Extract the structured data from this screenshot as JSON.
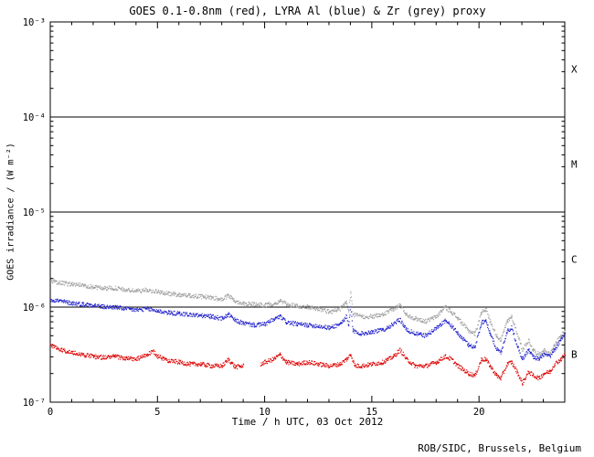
{
  "footer": {
    "credit": "ROB/SIDC, Brussels, Belgium"
  },
  "chart_data": {
    "type": "line",
    "title": "GOES 0.1-0.8nm (red), LYRA Al (blue) & Zr (grey) proxy",
    "xlabel": "Time / h UTC, 03 Oct 2012",
    "ylabel": "GOES irradiance / (W m⁻²)",
    "grid": false,
    "legend_position": "in-title",
    "x_axis": {
      "min": 0,
      "max": 24,
      "major_ticks": [
        0,
        5,
        10,
        15,
        20
      ],
      "tick_labels": [
        "0",
        "5",
        "10",
        "15",
        "20"
      ],
      "minor_tick_step": 1
    },
    "y_axis": {
      "scale": "log",
      "min": 1e-07,
      "max": 0.001,
      "tick_exponents": [
        -3,
        -4,
        -5,
        -6,
        -7
      ],
      "tick_labels": [
        "10⁻³",
        "10⁻⁴",
        "10⁻⁵",
        "10⁻⁶",
        "10⁻⁷"
      ]
    },
    "reference_lines": {
      "values": [
        0.0001,
        1e-05,
        1e-06
      ]
    },
    "flare_classes": [
      {
        "label": "X"
      },
      {
        "label": "M"
      },
      {
        "label": "C"
      },
      {
        "label": "B"
      }
    ],
    "series": [
      {
        "name": "LYRA Zr proxy",
        "color": "#a0a0a0",
        "points": [
          [
            0,
            1.86e-06
          ],
          [
            0.5,
            1.78e-06
          ],
          [
            1,
            1.74e-06
          ],
          [
            1.5,
            1.7e-06
          ],
          [
            2,
            1.62e-06
          ],
          [
            2.5,
            1.58e-06
          ],
          [
            3,
            1.58e-06
          ],
          [
            3.5,
            1.51e-06
          ],
          [
            4,
            1.48e-06
          ],
          [
            4.5,
            1.51e-06
          ],
          [
            5,
            1.45e-06
          ],
          [
            5.5,
            1.38e-06
          ],
          [
            6,
            1.35e-06
          ],
          [
            6.5,
            1.32e-06
          ],
          [
            7,
            1.29e-06
          ],
          [
            7.5,
            1.26e-06
          ],
          [
            8,
            1.2e-06
          ],
          [
            8.3,
            1.32e-06
          ],
          [
            8.6,
            1.15e-06
          ],
          [
            9,
            1.1e-06
          ],
          [
            9.5,
            1.07e-06
          ],
          [
            10,
            1.05e-06
          ],
          [
            10.5,
            1.1e-06
          ],
          [
            10.7,
            1.17e-06
          ],
          [
            11,
            1.07e-06
          ],
          [
            11.5,
            1.02e-06
          ],
          [
            12,
            1e-06
          ],
          [
            12.5,
            9.55e-07
          ],
          [
            13,
            8.91e-07
          ],
          [
            13.5,
            9.55e-07
          ],
          [
            13.8,
            1.12e-06
          ],
          [
            13.9,
            8.91e-07
          ],
          [
            14,
            1.41e-06
          ],
          [
            14.1,
            8.32e-07
          ],
          [
            14.5,
            7.94e-07
          ],
          [
            15,
            7.94e-07
          ],
          [
            15.5,
            8.32e-07
          ],
          [
            16,
            9.55e-07
          ],
          [
            16.3,
            1.05e-06
          ],
          [
            16.6,
            8.32e-07
          ],
          [
            17,
            7.59e-07
          ],
          [
            17.5,
            7.08e-07
          ],
          [
            18,
            7.94e-07
          ],
          [
            18.4,
            1e-06
          ],
          [
            18.7,
            8.91e-07
          ],
          [
            19,
            7.59e-07
          ],
          [
            19.5,
            5.62e-07
          ],
          [
            19.8,
            5.25e-07
          ],
          [
            20.1,
            8.91e-07
          ],
          [
            20.3,
            9.55e-07
          ],
          [
            20.5,
            7.08e-07
          ],
          [
            20.8,
            5.01e-07
          ],
          [
            21,
            4.47e-07
          ],
          [
            21.3,
            7.08e-07
          ],
          [
            21.5,
            7.94e-07
          ],
          [
            21.8,
            5.01e-07
          ],
          [
            22,
            3.55e-07
          ],
          [
            22.3,
            4.47e-07
          ],
          [
            22.5,
            3.55e-07
          ],
          [
            22.8,
            3.16e-07
          ],
          [
            23,
            3.55e-07
          ],
          [
            23.3,
            3.16e-07
          ],
          [
            23.5,
            3.98e-07
          ],
          [
            23.8,
            5.01e-07
          ],
          [
            24,
            5.62e-07
          ]
        ]
      },
      {
        "name": "LYRA Al proxy",
        "color": "#2222cc",
        "points": [
          [
            0,
            1.2e-06
          ],
          [
            0.5,
            1.15e-06
          ],
          [
            1,
            1.1e-06
          ],
          [
            1.5,
            1.07e-06
          ],
          [
            2,
            1.05e-06
          ],
          [
            2.5,
            1e-06
          ],
          [
            3,
            1e-06
          ],
          [
            3.5,
            9.55e-07
          ],
          [
            4,
            9.33e-07
          ],
          [
            4.5,
            9.55e-07
          ],
          [
            5,
            9.12e-07
          ],
          [
            5.5,
            8.71e-07
          ],
          [
            6,
            8.51e-07
          ],
          [
            6.5,
            8.32e-07
          ],
          [
            7,
            8.13e-07
          ],
          [
            7.5,
            7.94e-07
          ],
          [
            8,
            7.59e-07
          ],
          [
            8.3,
            8.32e-07
          ],
          [
            8.6,
            7.24e-07
          ],
          [
            9,
            6.76e-07
          ],
          [
            9.5,
            6.46e-07
          ],
          [
            10,
            6.61e-07
          ],
          [
            10.5,
            7.59e-07
          ],
          [
            10.7,
            7.94e-07
          ],
          [
            11,
            6.92e-07
          ],
          [
            11.5,
            6.61e-07
          ],
          [
            12,
            6.46e-07
          ],
          [
            12.5,
            6.31e-07
          ],
          [
            13,
            6.03e-07
          ],
          [
            13.5,
            6.61e-07
          ],
          [
            13.8,
            7.94e-07
          ],
          [
            13.9,
            6.31e-07
          ],
          [
            14,
            1e-06
          ],
          [
            14.1,
            5.62e-07
          ],
          [
            14.5,
            5.25e-07
          ],
          [
            15,
            5.5e-07
          ],
          [
            15.5,
            5.75e-07
          ],
          [
            16,
            6.61e-07
          ],
          [
            16.3,
            7.41e-07
          ],
          [
            16.6,
            5.75e-07
          ],
          [
            17,
            5.25e-07
          ],
          [
            17.5,
            5.01e-07
          ],
          [
            18,
            6.03e-07
          ],
          [
            18.4,
            7.24e-07
          ],
          [
            18.7,
            6.31e-07
          ],
          [
            19,
            5.25e-07
          ],
          [
            19.5,
            3.98e-07
          ],
          [
            19.8,
            3.8e-07
          ],
          [
            20.1,
            6.92e-07
          ],
          [
            20.3,
            7.24e-07
          ],
          [
            20.5,
            5.25e-07
          ],
          [
            20.8,
            3.63e-07
          ],
          [
            21,
            3.31e-07
          ],
          [
            21.3,
            5.62e-07
          ],
          [
            21.5,
            6.03e-07
          ],
          [
            21.8,
            3.8e-07
          ],
          [
            22,
            2.82e-07
          ],
          [
            22.3,
            3.55e-07
          ],
          [
            22.5,
            3.02e-07
          ],
          [
            22.8,
            2.82e-07
          ],
          [
            23,
            3.16e-07
          ],
          [
            23.3,
            3.02e-07
          ],
          [
            23.5,
            3.55e-07
          ],
          [
            23.8,
            4.47e-07
          ],
          [
            24,
            5.25e-07
          ]
        ]
      },
      {
        "name": "GOES 0.1-0.8nm",
        "color": "#dd0000",
        "points": [
          [
            0,
            3.98e-07
          ],
          [
            0.5,
            3.55e-07
          ],
          [
            1,
            3.31e-07
          ],
          [
            1.5,
            3.16e-07
          ],
          [
            2,
            3.02e-07
          ],
          [
            2.5,
            2.95e-07
          ],
          [
            3,
            3.02e-07
          ],
          [
            3.5,
            2.88e-07
          ],
          [
            4,
            2.82e-07
          ],
          [
            4.5,
            3.16e-07
          ],
          [
            4.8,
            3.39e-07
          ],
          [
            5,
            3.02e-07
          ],
          [
            5.5,
            2.75e-07
          ],
          [
            6,
            2.63e-07
          ],
          [
            6.5,
            2.51e-07
          ],
          [
            7,
            2.51e-07
          ],
          [
            7.5,
            2.4e-07
          ],
          [
            8,
            2.4e-07
          ],
          [
            8.3,
            2.82e-07
          ],
          [
            8.6,
            2.34e-07
          ],
          [
            9,
            2.4e-07
          ],
          [
            9.2,
            null
          ],
          [
            9.8,
            2.51e-07
          ],
          [
            10,
            2.63e-07
          ],
          [
            10.4,
            2.82e-07
          ],
          [
            10.7,
            3.16e-07
          ],
          [
            11,
            2.63e-07
          ],
          [
            11.5,
            2.51e-07
          ],
          [
            12,
            2.63e-07
          ],
          [
            12.5,
            2.51e-07
          ],
          [
            13,
            2.4e-07
          ],
          [
            13.5,
            2.51e-07
          ],
          [
            13.8,
            2.82e-07
          ],
          [
            14,
            3.16e-07
          ],
          [
            14.2,
            2.4e-07
          ],
          [
            14.5,
            2.4e-07
          ],
          [
            15,
            2.51e-07
          ],
          [
            15.5,
            2.63e-07
          ],
          [
            16,
            3.02e-07
          ],
          [
            16.3,
            3.55e-07
          ],
          [
            16.6,
            2.82e-07
          ],
          [
            17,
            2.4e-07
          ],
          [
            17.5,
            2.4e-07
          ],
          [
            18,
            2.63e-07
          ],
          [
            18.4,
            3.02e-07
          ],
          [
            18.7,
            2.82e-07
          ],
          [
            19,
            2.4e-07
          ],
          [
            19.5,
            2e-07
          ],
          [
            19.8,
            1.91e-07
          ],
          [
            20.1,
            2.82e-07
          ],
          [
            20.3,
            2.82e-07
          ],
          [
            20.5,
            2.4e-07
          ],
          [
            20.8,
            1.91e-07
          ],
          [
            21,
            1.78e-07
          ],
          [
            21.3,
            2.51e-07
          ],
          [
            21.5,
            2.63e-07
          ],
          [
            21.8,
            2e-07
          ],
          [
            22,
            1.58e-07
          ],
          [
            22.3,
            2.09e-07
          ],
          [
            22.5,
            1.91e-07
          ],
          [
            22.8,
            1.78e-07
          ],
          [
            23,
            2e-07
          ],
          [
            23.3,
            2.09e-07
          ],
          [
            23.5,
            2.51e-07
          ],
          [
            23.8,
            2.82e-07
          ],
          [
            24,
            3.16e-07
          ]
        ]
      }
    ]
  }
}
